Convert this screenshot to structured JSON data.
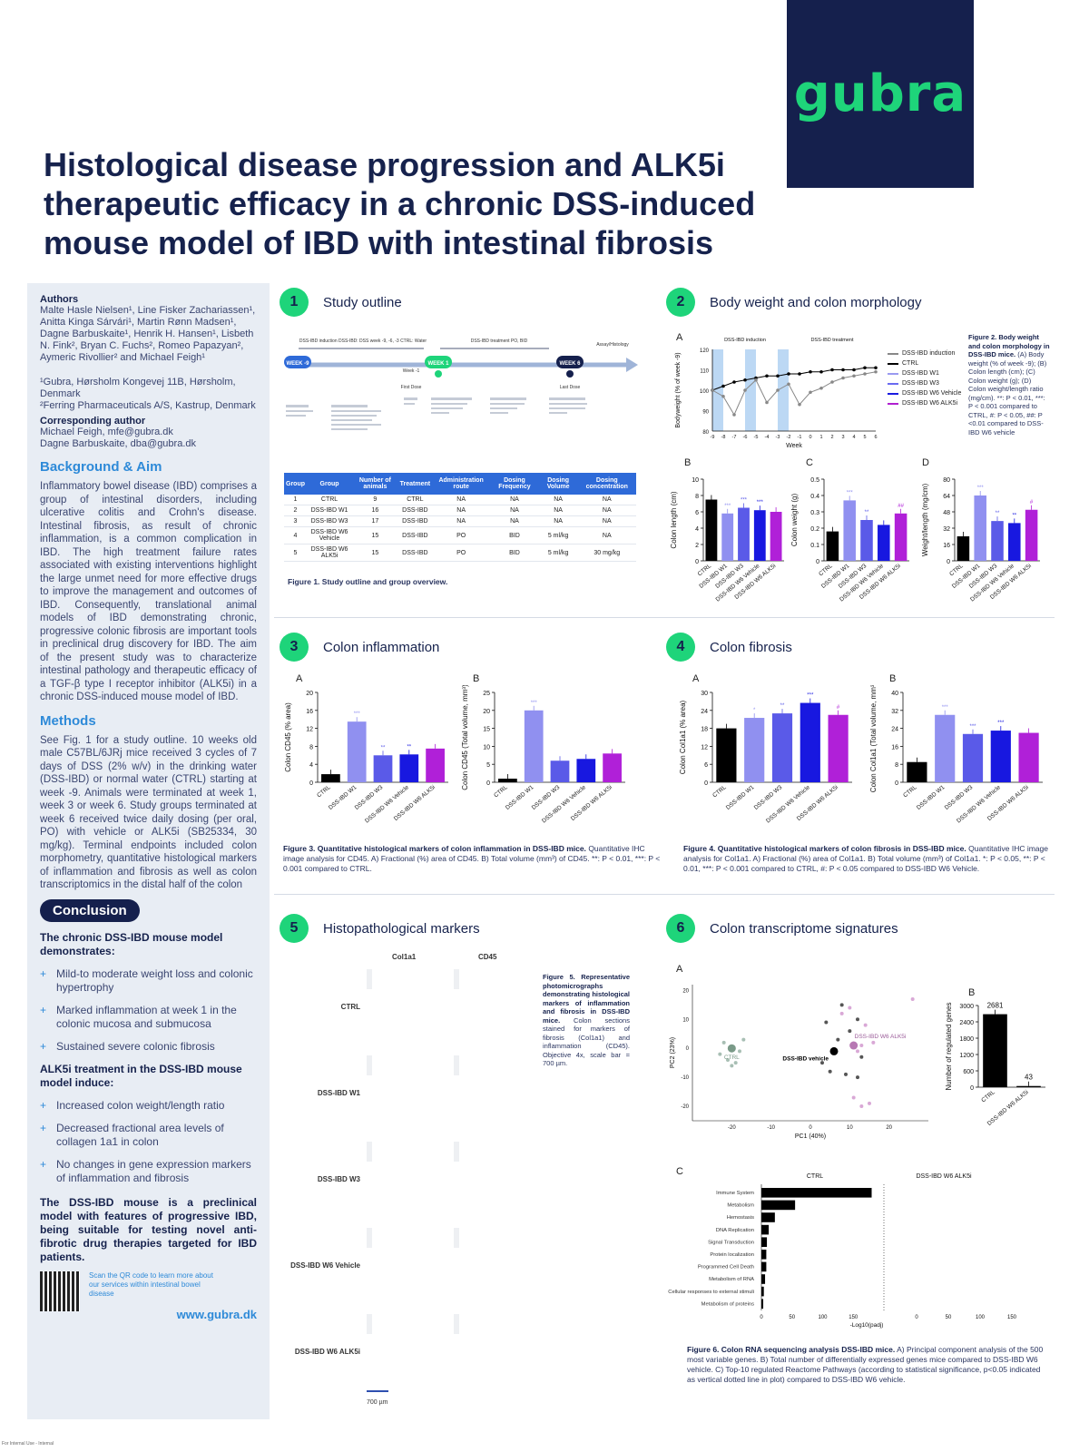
{
  "logo": "gubra",
  "title": "Histological disease progression and ALK5i therapeutic efficacy in a chronic DSS-induced mouse model of IBD with intestinal fibrosis",
  "sidebar": {
    "authors_heading": "Authors",
    "authors": "Malte Hasle Nielsen¹, Line Fisker Zachariassen¹, Anitta Kinga Sárvári¹, Martin Rønn Madsen¹, Dagne Barbuskaite¹, Henrik H. Hansen¹, Lisbeth N. Fink², Bryan C. Fuchs², Romeo Papazyan², Aymeric Rivollier² and Michael Feigh¹",
    "affiliations": "¹Gubra, Hørsholm Kongevej 11B, Hørsholm, Denmark\n²Ferring Pharmaceuticals A/S, Kastrup, Denmark",
    "corresponding_heading": "Corresponding author",
    "corresponding": "Michael Feigh, mfe@gubra.dk\nDagne Barbuskaite, dba@gubra.dk",
    "background_heading": "Background & Aim",
    "background": "Inflammatory bowel disease (IBD) comprises a group of intestinal disorders, including ulcerative colitis and Crohn's disease. Intestinal fibrosis, as result of chronic inflammation, is a common complication in IBD. The high treatment failure rates associated with existing interventions highlight the large unmet need for more effective drugs to improve the management and outcomes of IBD. Consequently, translational animal models of IBD demonstrating chronic, progressive colonic fibrosis are important tools in preclinical drug discovery for IBD. The aim of the present study was to characterize intestinal pathology and therapeutic efficacy of a TGF-β type I receptor inhibitor (ALK5i) in a chronic DSS-induced mouse model of IBD.",
    "methods_heading": "Methods",
    "methods": "See Fig. 1 for a study outline. 10 weeks old male C57BL/6JRj mice received 3 cycles of 7 days of DSS (2% w/v) in the drinking water (DSS-IBD) or normal water (CTRL) starting at week -9. Animals were terminated at week 1, week 3 or week 6. Study groups terminated at week 6 received twice daily dosing (per oral, PO) with vehicle or ALK5i (SB25334, 30 mg/kg). Terminal endpoints included colon morphometry, quantitative histological markers of inflammation and fibrosis as well as colon transcriptomics in the distal half of the colon",
    "conclusion_pill": "Conclusion",
    "conclusion_h1": "The chronic DSS-IBD mouse model demonstrates:",
    "bullets1": [
      "Mild-to moderate weight loss and colonic hypertrophy",
      "Marked inflammation at week 1 in the colonic mucosa and submucosa",
      "Sustained severe colonic fibrosis"
    ],
    "conclusion_h2": "ALK5i treatment in the DSS-IBD mouse model induce:",
    "bullets2": [
      "Increased colon weight/length ratio",
      "Decreased fractional area levels of collagen 1a1 in colon",
      "No changes in gene expression markers of inflammation and fibrosis"
    ],
    "final": "The DSS-IBD mouse is a preclinical model with features of progressive IBD, being suitable for testing novel anti-fibrotic drug therapies targeted for IBD patients.",
    "qr_text": "Scan the QR code to learn more about our services within intestinal bowel disease",
    "website": "www.gubra.dk"
  },
  "sections": {
    "s1": {
      "num": "1",
      "title": "Study outline"
    },
    "s2": {
      "num": "2",
      "title": "Body weight and colon morphology"
    },
    "s3": {
      "num": "3",
      "title": "Colon inflammation"
    },
    "s4": {
      "num": "4",
      "title": "Colon fibrosis"
    },
    "s5": {
      "num": "5",
      "title": "Histopathological markers"
    },
    "s6": {
      "num": "6",
      "title": "Colon transcriptome signatures"
    }
  },
  "timeline": {
    "weeks": [
      "WEEK -9",
      "WEEK 1",
      "WEEK 6"
    ],
    "induction": "DSS-IBD induction\nDSS-IBD: DSS week -9, -6, -3\nCTRL: Water",
    "treatment": "DSS-IBD treatment\nPO, BID",
    "assay": "Assay/Histology",
    "week_minus1": "Week -1",
    "first_dose": "First Dose",
    "last_dose": "Last Dose"
  },
  "group_table": {
    "headers": [
      "Group",
      "Group",
      "Number of animals",
      "Treatment",
      "Administration route",
      "Dosing Frequency",
      "Dosing Volume",
      "Dosing concentration"
    ],
    "rows": [
      [
        "1",
        "CTRL",
        "9",
        "CTRL",
        "NA",
        "NA",
        "NA",
        "NA"
      ],
      [
        "2",
        "DSS-IBD W1",
        "16",
        "DSS-IBD",
        "NA",
        "NA",
        "NA",
        "NA"
      ],
      [
        "3",
        "DSS-IBD W3",
        "17",
        "DSS-IBD",
        "NA",
        "NA",
        "NA",
        "NA"
      ],
      [
        "4",
        "DSS-IBD W6 Vehicle",
        "15",
        "DSS-IBD",
        "PO",
        "BID",
        "5 ml/kg",
        "NA"
      ],
      [
        "5",
        "DSS-IBD W6 ALK5i",
        "15",
        "DSS-IBD",
        "PO",
        "BID",
        "5 ml/kg",
        "30 mg/kg"
      ]
    ]
  },
  "fig1_caption": "Figure 1. Study outline and group overview.",
  "fig2": {
    "caption_title": "Figure 2. Body weight and colon morphology in DSS-IBD mice.",
    "caption": "(A) Body weight (% of week -9); (B) Colon length (cm); (C) Colon weight (g); (D) Colon weight/length ratio (mg/cm). **: P < 0.01, ***: P < 0.001 compared to CTRL, #: P < 0.05, ##: P <0.01 compared to DSS-IBD W6 vehicle",
    "legend": [
      "DSS-IBD induction",
      "CTRL",
      "DSS-IBD W1",
      "DSS-IBD W3",
      "DSS-IBD W6 Vehicle",
      "DSS-IBD W6 ALK5i"
    ],
    "line_top_left": "DSS-IBD induction",
    "line_top_right": "DSS-IBD treatment",
    "x_label": "Week",
    "y_label": "Bodyweight (% of week -9)"
  },
  "fig3_caption_b": "Figure 3. Quantitative histological markers of colon inflammation in DSS-IBD mice.",
  "fig3_caption": "Quantitative IHC image analysis for CD45. A) Fractional (%) area of CD45. B) Total volume (mm³) of CD45. **: P < 0.01, ***: P < 0.001 compared to CTRL.",
  "fig4_caption_b": "Figure 4. Quantitative histological markers of colon fibrosis in DSS-IBD mice.",
  "fig4_caption": "Quantitative IHC image analysis for Col1a1. A) Fractional (%) area of Col1a1. B) Total volume (mm³) of Col1a1. *: P < 0.05, **: P < 0.01, ***: P < 0.001 compared to CTRL, #: P < 0.05 compared to DSS-IBD W6 Vehicle.",
  "fig5": {
    "col1": "Col1a1",
    "col2": "CD45",
    "rows": [
      "CTRL",
      "DSS-IBD W1",
      "DSS-IBD W3",
      "DSS-IBD W6 Vehicle",
      "DSS-IBD W6 ALK5i"
    ],
    "caption_title": "Figure 5. Representative photomicrographs demonstrating histological markers of inflammation and fibrosis in DSS-IBD mice.",
    "caption": "Colon sections stained for markers of fibrosis (Col1a1) and inflammation (CD45). Objective 4x, scale bar = 700 µm.",
    "scale": "700 µm"
  },
  "fig6": {
    "caption_title": "Figure 6. Colon RNA sequencing analysis DSS-IBD mice.",
    "caption": "A) Principal component analysis of the 500 most variable genes. B) Total number of differentially expressed genes mice compared to DSS-IBD W6 vehicle. C) Top-10 regulated Reactome Pathways (according to statistical significance, p<0.05 indicated as vertical dotted line in plot) compared to DSS-IBD W6 vehicle.",
    "pca_labels": [
      "CTRL",
      "DSS-IBD vehicle",
      "DSS-IBD W6 ALK5i"
    ],
    "pc1": "PC1 (40%)",
    "pc2": "PC2 (23%)",
    "c_head_left": "CTRL",
    "c_head_right": "DSS-IBD W6 ALK5i",
    "c_xlabel": "-Log10(padj)"
  },
  "footer": "For Internal Use - Internal",
  "chart_data": [
    {
      "id": "2A",
      "type": "line",
      "title": "",
      "xlabel": "Week",
      "ylabel": "Bodyweight (% of week -9)",
      "ylim": [
        80,
        120
      ],
      "x": [
        -9,
        -8,
        -7,
        -6,
        -5,
        -4,
        -3,
        -2,
        -1,
        0,
        1,
        2,
        3,
        4,
        5,
        6
      ],
      "series": [
        {
          "name": "CTRL",
          "values": [
            100,
            102,
            104,
            105,
            106,
            107,
            107,
            108,
            108,
            109,
            109,
            110,
            110,
            110,
            111,
            111
          ]
        },
        {
          "name": "DSS-IBD induction",
          "values": [
            100,
            97,
            88,
            100,
            105,
            94,
            100,
            103,
            93,
            99,
            101,
            104,
            106,
            107,
            108,
            109
          ]
        }
      ]
    },
    {
      "id": "2B",
      "type": "bar",
      "ylabel": "Colon length (cm)",
      "ylim": [
        0,
        10
      ],
      "categories": [
        "CTRL",
        "DSS-IBD W1",
        "DSS-IBD W3",
        "DSS-IBD W6 Vehicle",
        "DSS-IBD W6 ALK5i"
      ],
      "values": [
        7.5,
        5.8,
        6.5,
        6.2,
        6.0
      ],
      "labels": [
        "",
        "***",
        "***",
        "***",
        ""
      ]
    },
    {
      "id": "2C",
      "type": "bar",
      "ylabel": "Colon weight (g)",
      "ylim": [
        0,
        0.5
      ],
      "categories": [
        "CTRL",
        "DSS-IBD W1",
        "DSS-IBD W3",
        "DSS-IBD W6 Vehicle",
        "DSS-IBD W6 ALK5i"
      ],
      "values": [
        0.18,
        0.37,
        0.25,
        0.22,
        0.29
      ],
      "labels": [
        "",
        "***",
        "**",
        "",
        "##"
      ]
    },
    {
      "id": "2D",
      "type": "bar",
      "ylabel": "Weight/length (mg/cm)",
      "ylim": [
        0,
        80
      ],
      "categories": [
        "CTRL",
        "DSS-IBD W1",
        "DSS-IBD W3",
        "DSS-IBD W6 Vehicle",
        "DSS-IBD W6 ALK5i"
      ],
      "values": [
        24,
        64,
        39,
        37,
        50
      ],
      "labels": [
        "",
        "***",
        "**",
        "**",
        "#"
      ]
    },
    {
      "id": "3A",
      "type": "bar",
      "ylabel": "Colon CD45 (% area)",
      "ylim": [
        0,
        20
      ],
      "categories": [
        "CTRL",
        "DSS-IBD W1",
        "DSS-IBD W3",
        "DSS-IBD W6 Vehicle",
        "DSS-IBD W6 ALK5i"
      ],
      "values": [
        1.8,
        13.5,
        6.0,
        6.2,
        7.5
      ],
      "labels": [
        "",
        "***",
        "**",
        "**",
        ""
      ]
    },
    {
      "id": "3B",
      "type": "bar",
      "ylabel": "Colon CD45 (Total volume, mm³)",
      "ylim": [
        0,
        25
      ],
      "categories": [
        "CTRL",
        "DSS-IBD W1",
        "DSS-IBD W3",
        "DSS-IBD W6 Vehicle",
        "DSS-IBD W6 ALK5i"
      ],
      "values": [
        1.0,
        20,
        6.0,
        6.5,
        8.0
      ],
      "labels": [
        "",
        "***",
        "",
        "",
        ""
      ]
    },
    {
      "id": "4A",
      "type": "bar",
      "ylabel": "Colon Col1a1 (% area)",
      "ylim": [
        0,
        30
      ],
      "categories": [
        "CTRL",
        "DSS-IBD W1",
        "DSS-IBD W3",
        "DSS-IBD W6 Vehicle",
        "DSS-IBD W6 ALK5i"
      ],
      "values": [
        18,
        21.5,
        23,
        26.5,
        22.5
      ],
      "labels": [
        "",
        "*",
        "**",
        "***",
        "#"
      ]
    },
    {
      "id": "4B",
      "type": "bar",
      "ylabel": "Colon Col1a1 (Total volume, mm³)",
      "ylim": [
        0,
        40
      ],
      "categories": [
        "CTRL",
        "DSS-IBD W1",
        "DSS-IBD W3",
        "DSS-IBD W6 Vehicle",
        "DSS-IBD W6 ALK5i"
      ],
      "values": [
        9,
        30,
        21.5,
        23,
        22
      ],
      "labels": [
        "",
        "***",
        "***",
        "***",
        ""
      ]
    },
    {
      "id": "6B",
      "type": "bar",
      "ylabel": "Number of regulated genes",
      "ylim": [
        0,
        3000
      ],
      "categories": [
        "CTRL",
        "DSS-IBD W6 ALK5i"
      ],
      "values": [
        2681,
        43
      ],
      "labels": [
        "2681",
        "43"
      ]
    },
    {
      "id": "6C",
      "type": "bar",
      "orientation": "horizontal",
      "xlabel": "-Log10(padj)",
      "categories": [
        "Immune System",
        "Metabolism",
        "Hemostasis",
        "DNA Replication",
        "Signal Transduction",
        "Protein localization",
        "Programmed Cell Death",
        "Metabolism of RNA",
        "Cellular responses to external stimuli",
        "Metabolism of proteins"
      ],
      "values": [
        180,
        55,
        22,
        12,
        9,
        8,
        8,
        6,
        4,
        3
      ]
    }
  ]
}
